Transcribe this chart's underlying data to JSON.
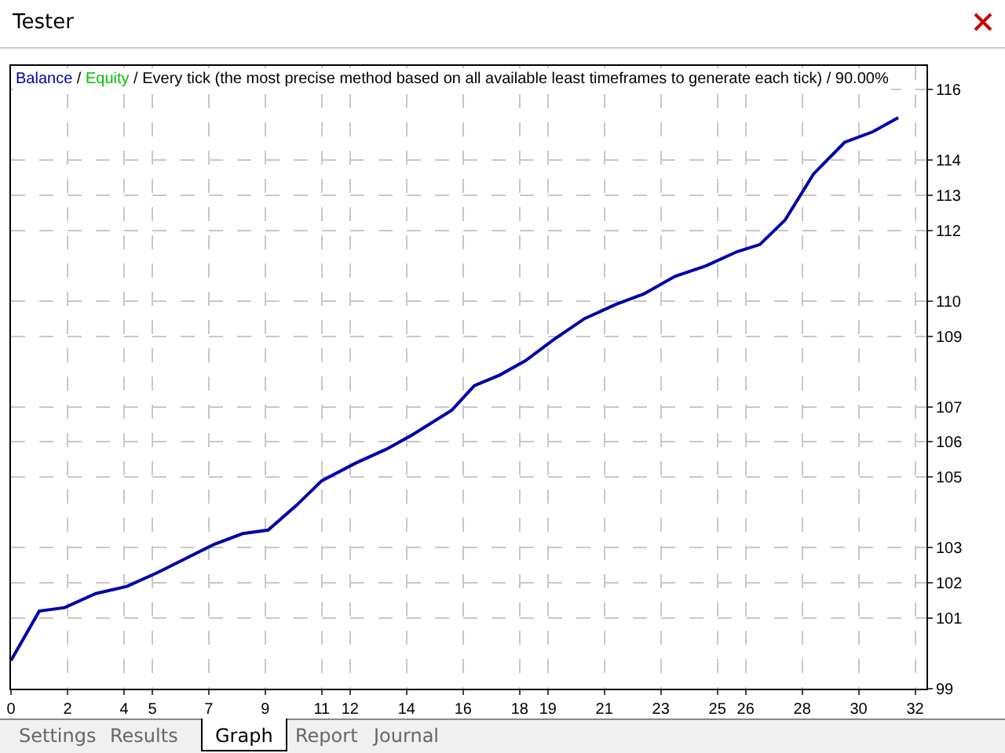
{
  "chart_data": {
    "type": "line",
    "title": "Tester",
    "subtitle": "Balance / Equity / Every tick (the most precise method based on all available least timeframes to generate each tick) / 90.00%",
    "annotations": [
      "Settings",
      "Results",
      "Graph",
      "Report",
      "Journal"
    ],
    "x": [
      0,
      1.0,
      1.9,
      3.0,
      4.1,
      5.2,
      6.2,
      7.2,
      8.2,
      9.1,
      10.1,
      11.0,
      12.2,
      13.3,
      14.2,
      15.6,
      16.4,
      17.3,
      18.2,
      19.2,
      20.3,
      21.4,
      22.4,
      23.5,
      24.6,
      25.7,
      26.5,
      27.4,
      28.4,
      29.5,
      30.5,
      31.4
    ],
    "series": [
      {
        "color": "#0000a8",
        "values": [
          99.8,
          101.2,
          101.3,
          101.7,
          101.9,
          102.3,
          102.7,
          103.1,
          103.4,
          103.5,
          104.2,
          104.9,
          105.4,
          105.8,
          106.2,
          106.9,
          107.6,
          107.9,
          108.3,
          108.9,
          109.5,
          109.9,
          110.2,
          110.7,
          111.0,
          111.4,
          111.6,
          112.3,
          113.6,
          114.5,
          114.8,
          115.2
        ]
      },
      {
        "color": "#00c000",
        "values": [
          null,
          null,
          null,
          null,
          null,
          null,
          null,
          null,
          null,
          null,
          null,
          null,
          null,
          null,
          null,
          null,
          null,
          null,
          null,
          null,
          null,
          null,
          null,
          null,
          null,
          null,
          null,
          null,
          null,
          null,
          null,
          null
        ]
      }
    ],
    "xlim": [
      0,
      32.4
    ],
    "xticks": [
      0,
      2,
      4,
      5,
      7,
      9,
      11,
      12,
      14,
      16,
      18,
      19,
      21,
      23,
      25,
      26,
      28,
      30,
      32
    ],
    "ylim": [
      99,
      116.67
    ],
    "yticks": [
      99,
      101,
      102,
      103,
      105,
      106,
      107,
      109,
      110,
      112,
      113,
      114,
      116
    ],
    "grid": true,
    "marker": "none",
    "line_style": "solid"
  }
}
